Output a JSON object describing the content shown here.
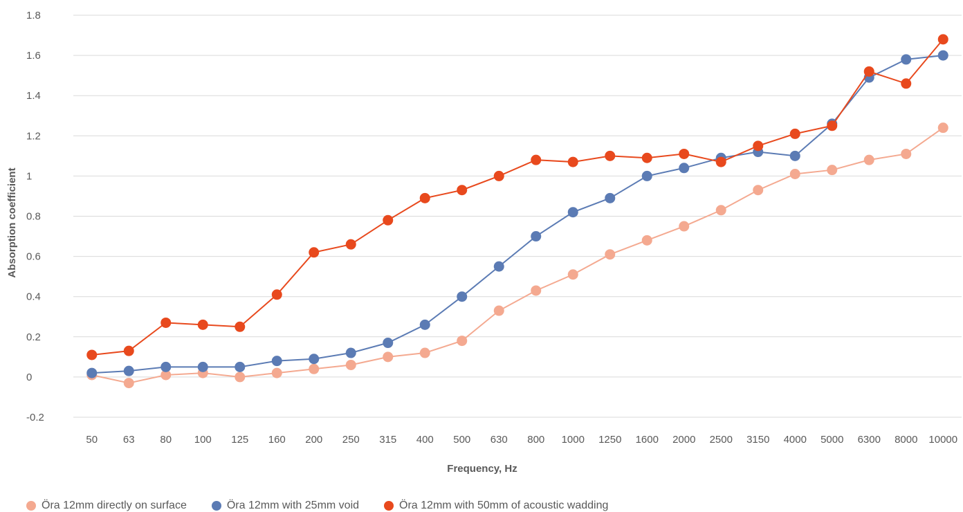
{
  "chart_data": {
    "type": "line",
    "title": "",
    "xlabel": "Frequency, Hz",
    "ylabel": "Absorption coefficient",
    "ylim": [
      -0.2,
      1.8
    ],
    "yticks": [
      "-0.2",
      "0",
      "0.2",
      "0.4",
      "0.6",
      "0.8",
      "1",
      "1.2",
      "1.4",
      "1.6",
      "1.8"
    ],
    "grid": true,
    "legend_position": "bottom",
    "categories": [
      "50",
      "63",
      "80",
      "100",
      "125",
      "160",
      "200",
      "250",
      "315",
      "400",
      "500",
      "630",
      "800",
      "1000",
      "1250",
      "1600",
      "2000",
      "2500",
      "3150",
      "4000",
      "5000",
      "6300",
      "8000",
      "10000"
    ],
    "series": [
      {
        "name": "Öra 12mm directly on surface",
        "color": "#F4A990",
        "values": [
          0.01,
          -0.03,
          0.01,
          0.02,
          0.0,
          0.02,
          0.04,
          0.06,
          0.1,
          0.12,
          0.18,
          0.33,
          0.43,
          0.51,
          0.61,
          0.68,
          0.75,
          0.83,
          0.93,
          1.01,
          1.03,
          1.08,
          1.11,
          1.24
        ]
      },
      {
        "name": "Öra 12mm with 25mm void",
        "color": "#5B7BB4",
        "values": [
          0.02,
          0.03,
          0.05,
          0.05,
          0.05,
          0.08,
          0.09,
          0.12,
          0.17,
          0.26,
          0.4,
          0.55,
          0.7,
          0.82,
          0.89,
          1.0,
          1.04,
          1.09,
          1.12,
          1.1,
          1.26,
          1.49,
          1.58,
          1.6
        ]
      },
      {
        "name": "Öra 12mm with 50mm of acoustic wadding",
        "color": "#E8491D",
        "values": [
          0.11,
          0.13,
          0.27,
          0.26,
          0.25,
          0.41,
          0.62,
          0.66,
          0.78,
          0.89,
          0.93,
          1.0,
          1.08,
          1.07,
          1.1,
          1.09,
          1.11,
          1.07,
          1.15,
          1.21,
          1.25,
          1.52,
          1.46,
          1.68
        ]
      }
    ]
  }
}
